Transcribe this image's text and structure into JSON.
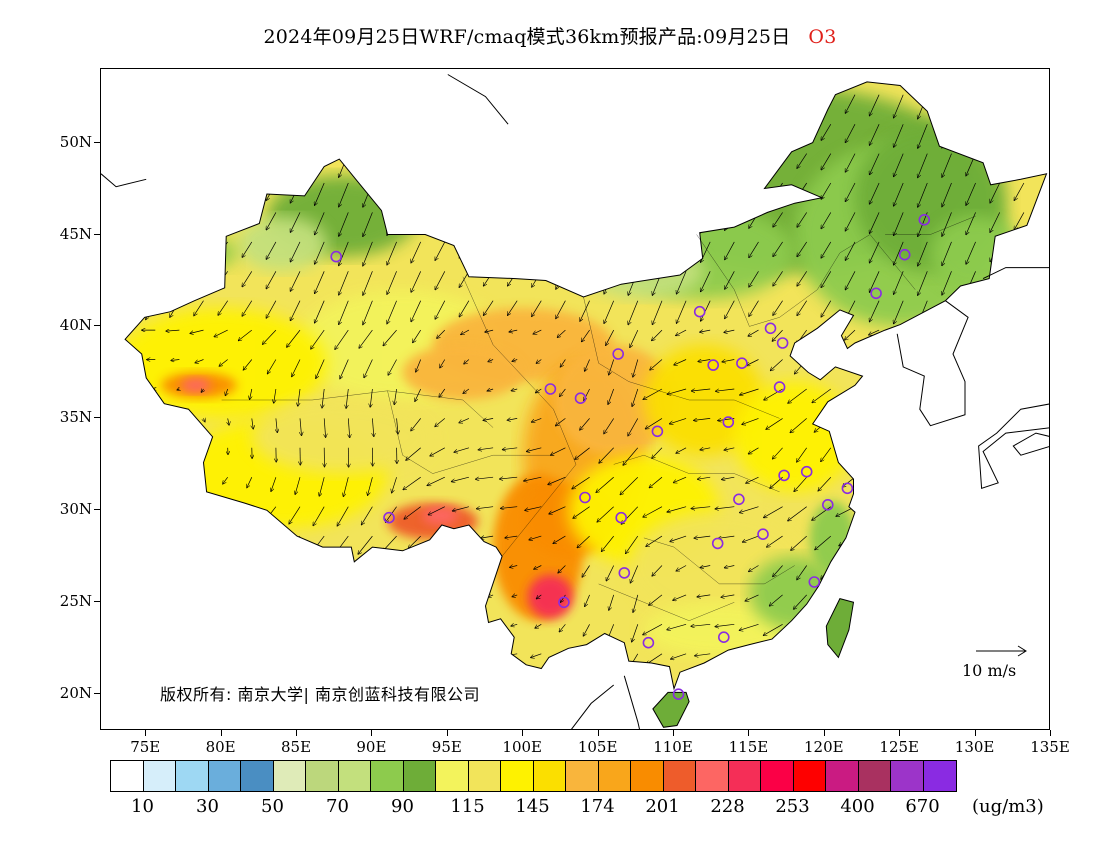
{
  "title": {
    "main": "2024年09月25日WRF/cmaq模式36km预报产品:09月25日",
    "species": "O3"
  },
  "axes": {
    "lat_labels": [
      "50N",
      "45N",
      "40N",
      "35N",
      "30N",
      "25N",
      "20N"
    ],
    "lat_values": [
      50,
      45,
      40,
      35,
      30,
      25,
      20
    ],
    "lon_labels": [
      "75E",
      "80E",
      "85E",
      "90E",
      "95E",
      "100E",
      "105E",
      "110E",
      "115E",
      "120E",
      "125E",
      "130E",
      "135E"
    ],
    "lon_values": [
      75,
      80,
      85,
      90,
      95,
      100,
      105,
      110,
      115,
      120,
      125,
      130,
      135
    ],
    "lat_range": [
      18,
      54
    ],
    "lon_range": [
      72,
      135
    ]
  },
  "copyright": "版权所有: 南京大学| 南京创蓝科技有限公司",
  "wind_reference": {
    "label": "10 m/s",
    "speed": 10
  },
  "colorbar": {
    "colors": [
      "#ffffff",
      "#d6eefa",
      "#9ed8f3",
      "#6aaedc",
      "#4a8ec2",
      "#dfebb8",
      "#bcd77c",
      "#c3e07d",
      "#8dcb4d",
      "#6ead38",
      "#f3f35c",
      "#f2e45a",
      "#fef200",
      "#fbdf00",
      "#f9b53c",
      "#f9a61b",
      "#f98c00",
      "#ee5c2b",
      "#fd6663",
      "#f52e57",
      "#fb0046",
      "#fe0000",
      "#ca1b82",
      "#a93160",
      "#9c34c9",
      "#8a2be2"
    ],
    "labels": [
      "10",
      "30",
      "50",
      "70",
      "90",
      "115",
      "145",
      "174",
      "201",
      "228",
      "253",
      "400",
      "670"
    ],
    "unit": "(ug/m3)"
  },
  "stations": [
    [
      87.6,
      43.8
    ],
    [
      91.1,
      29.6
    ],
    [
      101.8,
      36.6
    ],
    [
      103.8,
      36.1
    ],
    [
      106.3,
      38.5
    ],
    [
      104.1,
      30.7
    ],
    [
      106.5,
      29.6
    ],
    [
      106.7,
      26.6
    ],
    [
      102.7,
      25.0
    ],
    [
      108.3,
      22.8
    ],
    [
      110.3,
      20.0
    ],
    [
      113.3,
      23.1
    ],
    [
      111.7,
      40.8
    ],
    [
      112.6,
      37.9
    ],
    [
      114.5,
      38.0
    ],
    [
      116.4,
      39.9
    ],
    [
      117.2,
      39.1
    ],
    [
      113.6,
      34.8
    ],
    [
      108.9,
      34.3
    ],
    [
      117.0,
      36.7
    ],
    [
      117.3,
      31.9
    ],
    [
      118.8,
      32.1
    ],
    [
      120.2,
      30.3
    ],
    [
      121.5,
      31.2
    ],
    [
      114.3,
      30.6
    ],
    [
      112.9,
      28.2
    ],
    [
      115.9,
      28.7
    ],
    [
      119.3,
      26.1
    ],
    [
      123.4,
      41.8
    ],
    [
      125.3,
      43.9
    ],
    [
      126.6,
      45.8
    ]
  ]
}
